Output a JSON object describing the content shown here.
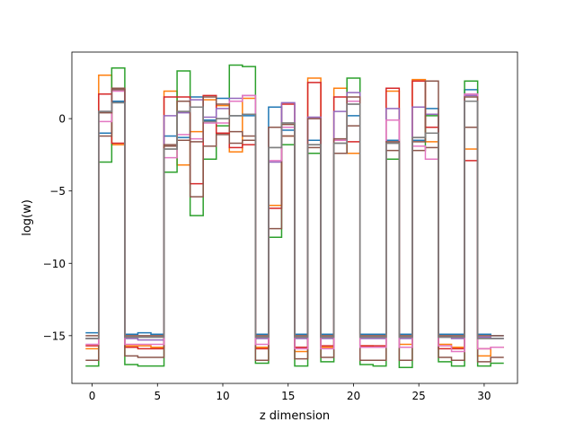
{
  "chart_data": {
    "type": "line",
    "step": true,
    "xlabel": "z dimension",
    "ylabel": "log(w)",
    "xlim": [
      -1.55,
      32.55
    ],
    "ylim": [
      -18.3,
      4.6
    ],
    "xticks": [
      0,
      5,
      10,
      15,
      20,
      25,
      30
    ],
    "yticks": [
      -15,
      -10,
      -5,
      0
    ],
    "ytick_labels": [
      "−15",
      "−10",
      "−5",
      "0"
    ],
    "grid": false,
    "legend": "none",
    "series": [
      {
        "color": "#1f77b4",
        "values": [
          -14.8,
          -1.0,
          1.2,
          -14.9,
          -14.8,
          -14.9,
          -1.2,
          -1.3,
          1.5,
          -0.1,
          1.4,
          0.2,
          0.2,
          -14.9,
          0.8,
          -0.8,
          -14.9,
          -1.5,
          -14.9,
          -1.5,
          0.2,
          -14.9,
          -14.9,
          -1.5,
          -14.9,
          -1.5,
          0.7,
          -14.9,
          -14.9,
          2.0,
          -14.9,
          -15.0
        ]
      },
      {
        "color": "#ff7f0e",
        "values": [
          -15.9,
          3.0,
          -1.8,
          -15.7,
          -15.7,
          -15.8,
          1.9,
          -3.2,
          -0.9,
          1.3,
          0.9,
          -2.3,
          1.4,
          -15.8,
          -6.0,
          -1.2,
          -16.1,
          2.8,
          -15.8,
          2.1,
          -2.4,
          -15.7,
          -15.8,
          1.9,
          -15.6,
          2.7,
          -1.6,
          -15.6,
          -15.8,
          -2.1,
          -16.4,
          -15.8
        ]
      },
      {
        "color": "#2ca02c",
        "values": [
          -17.1,
          -3.0,
          3.5,
          -17.0,
          -17.1,
          -17.1,
          -3.7,
          3.3,
          -6.7,
          -2.8,
          -0.5,
          3.7,
          3.6,
          -16.9,
          -8.2,
          -1.8,
          -17.1,
          -2.4,
          -16.8,
          -2.4,
          2.8,
          -17.0,
          -17.1,
          -2.8,
          -17.2,
          -1.9,
          0.2,
          -16.8,
          -17.1,
          2.6,
          -17.1,
          -16.9
        ]
      },
      {
        "color": "#d62728",
        "values": [
          -15.7,
          1.7,
          -1.7,
          -15.8,
          -15.9,
          -15.9,
          1.5,
          1.5,
          -4.5,
          1.6,
          -1.0,
          -2.0,
          -1.8,
          -15.9,
          -6.2,
          1.0,
          -15.8,
          2.5,
          -15.7,
          1.5,
          -1.6,
          -15.7,
          -15.7,
          2.1,
          -15.8,
          2.6,
          -0.6,
          -15.9,
          -15.9,
          -2.9,
          -15.9,
          -15.8
        ]
      },
      {
        "color": "#9467bd",
        "values": [
          -15.2,
          0.5,
          2.0,
          -15.2,
          -15.3,
          -15.3,
          0.2,
          0.4,
          1.3,
          0.1,
          0.7,
          1.4,
          1.6,
          -15.2,
          -3.0,
          1.1,
          -15.2,
          0.1,
          -15.2,
          0.5,
          1.8,
          -15.2,
          -15.2,
          0.7,
          -15.2,
          0.8,
          0.3,
          -15.1,
          -15.2,
          1.6,
          -15.1,
          -15.2
        ]
      },
      {
        "color": "#8c564b",
        "values": [
          -16.7,
          -1.2,
          2.1,
          -16.4,
          -16.5,
          -16.5,
          -1.8,
          -1.5,
          -5.4,
          -1.9,
          -1.1,
          -1.7,
          -1.5,
          -16.7,
          -7.6,
          -1.2,
          -16.6,
          -2.0,
          -16.5,
          -2.4,
          -0.5,
          -16.7,
          -16.7,
          -2.2,
          -16.7,
          -2.2,
          -2.0,
          -16.5,
          -16.7,
          -0.6,
          -16.8,
          -16.5
        ]
      },
      {
        "color": "#e377c2",
        "values": [
          -15.6,
          -0.2,
          1.9,
          -15.6,
          -15.6,
          -15.6,
          -2.7,
          -1.1,
          -1.4,
          -0.3,
          -0.3,
          1.2,
          1.6,
          -15.6,
          -2.9,
          -0.6,
          -15.9,
          0.0,
          -15.9,
          -1.5,
          1.2,
          -15.8,
          -15.8,
          -0.1,
          -15.8,
          -1.9,
          -2.8,
          -15.7,
          -16.1,
          1.7,
          -15.9,
          -15.8
        ]
      },
      {
        "color": "#7f7f7f",
        "values": [
          -15.2,
          0.5,
          1.1,
          -15.1,
          -15.1,
          -15.1,
          -2.1,
          0.5,
          0.8,
          -0.2,
          0.0,
          0.2,
          0.3,
          -15.1,
          -2.0,
          -0.3,
          -15.1,
          -1.8,
          -15.1,
          -1.7,
          1.0,
          -15.1,
          -15.1,
          -1.7,
          -15.1,
          -1.3,
          -1.0,
          -15.1,
          -15.1,
          1.2,
          -15.2,
          -15.2
        ]
      },
      {
        "color": "#8c564b",
        "values": [
          -15.0,
          0.4,
          2.0,
          -15.0,
          -15.0,
          -15.0,
          -1.9,
          1.2,
          -1.6,
          1.5,
          1.0,
          -0.9,
          -1.2,
          -15.0,
          -0.6,
          -0.4,
          -15.0,
          0.0,
          -15.0,
          -1.4,
          1.5,
          -15.0,
          -15.0,
          -1.6,
          -15.0,
          -1.6,
          2.6,
          -15.0,
          -15.0,
          1.5,
          -15.0,
          -15.0
        ]
      },
      {
        "color": "#7f7f7f",
        "values": [
          -15.2,
          0.5,
          1.1,
          -15.1,
          -15.1,
          -15.1,
          -2.1,
          0.5,
          0.8,
          -0.2,
          0.0,
          0.2,
          0.3,
          -15.1,
          -2.0,
          -0.3,
          -15.1,
          -1.8,
          -15.1,
          -1.7,
          1.0,
          -15.1,
          -15.1,
          -1.7,
          -15.1,
          -1.3,
          -1.0,
          -15.1,
          -15.1,
          1.2,
          -15.2,
          -15.2
        ]
      }
    ]
  }
}
